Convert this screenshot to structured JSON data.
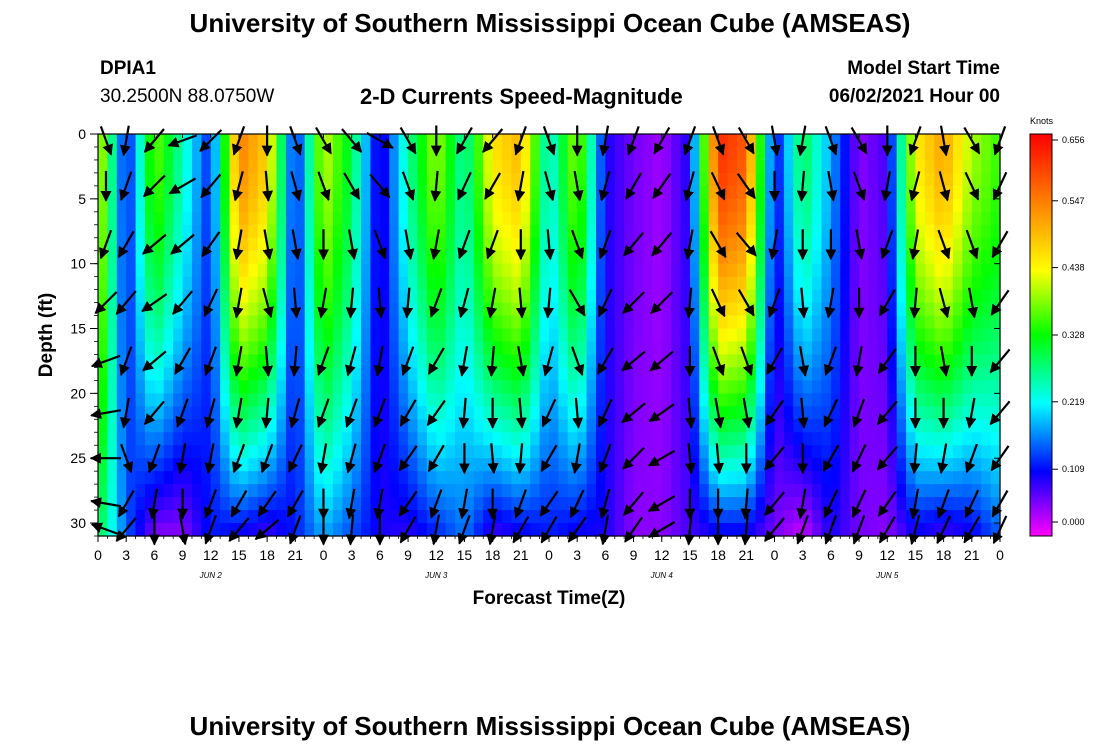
{
  "header": {
    "title_top": "University of Southern Mississippi Ocean Cube (AMSEAS)",
    "title_bottom": "University of Southern Mississippi Ocean Cube (AMSEAS)",
    "station_id": "DPIA1",
    "station_coords": "30.2500N  88.0750W",
    "plot_title": "2-D Currents Speed-Magnitude",
    "model_label": "Model Start Time",
    "model_time": "06/02/2021 Hour 00"
  },
  "chart_data": {
    "type": "heatmap",
    "title": "2-D Currents Speed-Magnitude",
    "xlabel": "Forecast Time(Z)",
    "ylabel": "Depth (ft)",
    "x_hours_range": [
      0,
      96
    ],
    "y_depth_range": [
      0,
      31
    ],
    "x_tick_labels": [
      "0",
      "3",
      "6",
      "9",
      "12",
      "15",
      "18",
      "21",
      "0",
      "3",
      "6",
      "9",
      "12",
      "15",
      "18",
      "21",
      "0",
      "3",
      "6",
      "9",
      "12",
      "15",
      "18",
      "21",
      "0",
      "3",
      "6",
      "9",
      "12",
      "15",
      "18",
      "21",
      "0"
    ],
    "y_tick_labels": [
      "0",
      "5",
      "10",
      "15",
      "20",
      "25",
      "30"
    ],
    "y_tick_values": [
      0,
      5,
      10,
      15,
      20,
      25,
      30
    ],
    "date_labels": [
      {
        "hour": 12,
        "label": "JUN 2"
      },
      {
        "hour": 36,
        "label": "JUN 3"
      },
      {
        "hour": 60,
        "label": "JUN 4"
      },
      {
        "hour": 84,
        "label": "JUN 5"
      }
    ],
    "colorbar": {
      "unit": "Knots",
      "min": 0.0,
      "max": 0.656,
      "tick_labels": [
        "0.656",
        "0.547",
        "0.438",
        "0.328",
        "0.219",
        "0.109",
        "0.000"
      ],
      "tick_values": [
        0.656,
        0.547,
        0.438,
        0.328,
        0.219,
        0.109,
        0.0
      ],
      "colors": [
        "#ff00ff",
        "#0000ff",
        "#00ffff",
        "#00ff00",
        "#ffff00",
        "#ff8000",
        "#ff0000"
      ]
    },
    "surface_speed_by_3h": [
      0.44,
      0.1,
      0.38,
      0.25,
      0.12,
      0.55,
      0.48,
      0.1,
      0.42,
      0.3,
      0.08,
      0.26,
      0.4,
      0.25,
      0.46,
      0.5,
      0.22,
      0.4,
      0.1,
      0.06,
      0.04,
      0.1,
      0.62,
      0.58,
      0.1,
      0.3,
      0.18,
      0.05,
      0.08,
      0.45,
      0.52,
      0.4,
      0.35
    ],
    "near_bottom_speed_by_3h": [
      0.3,
      0.15,
      0.05,
      0.05,
      0.12,
      0.1,
      0.08,
      0.12,
      0.18,
      0.14,
      0.1,
      0.09,
      0.12,
      0.16,
      0.08,
      0.1,
      0.12,
      0.1,
      0.1,
      0.05,
      0.05,
      0.08,
      0.1,
      0.1,
      0.06,
      0.02,
      0.1,
      0.06,
      0.05,
      0.1,
      0.08,
      0.1,
      0.15
    ],
    "arrow_columns_by_3h": [
      [
        160,
        180,
        200,
        225,
        250,
        260,
        270,
        280,
        290
      ],
      [
        190,
        200,
        210,
        220,
        200,
        190,
        160,
        210,
        220
      ],
      [
        220,
        225,
        230,
        235,
        230,
        220,
        200,
        190,
        180
      ],
      [
        250,
        240,
        230,
        220,
        210,
        200,
        190,
        180,
        170
      ],
      [
        225,
        220,
        215,
        205,
        200,
        195,
        190,
        200,
        200
      ],
      [
        200,
        195,
        190,
        190,
        190,
        190,
        200,
        210,
        220
      ],
      [
        180,
        175,
        170,
        165,
        175,
        185,
        200,
        215,
        230
      ],
      [
        160,
        165,
        170,
        175,
        185,
        195,
        205,
        210,
        200
      ],
      [
        150,
        160,
        180,
        190,
        200,
        200,
        190,
        180,
        180
      ],
      [
        140,
        150,
        170,
        185,
        195,
        200,
        195,
        190,
        185
      ],
      [
        120,
        140,
        160,
        175,
        190,
        200,
        200,
        190,
        180
      ],
      [
        150,
        160,
        170,
        185,
        200,
        210,
        215,
        215,
        210
      ],
      [
        180,
        185,
        190,
        200,
        210,
        215,
        210,
        200,
        190
      ],
      [
        210,
        205,
        200,
        195,
        190,
        185,
        180,
        190,
        200
      ],
      [
        220,
        210,
        200,
        190,
        185,
        180,
        175,
        180,
        190
      ],
      [
        200,
        190,
        180,
        175,
        170,
        175,
        185,
        200,
        210
      ],
      [
        160,
        165,
        175,
        185,
        195,
        205,
        210,
        215,
        210
      ],
      [
        180,
        170,
        160,
        150,
        160,
        175,
        190,
        205,
        215
      ],
      [
        190,
        195,
        200,
        205,
        210,
        205,
        200,
        195,
        190
      ],
      [
        200,
        210,
        220,
        225,
        230,
        230,
        225,
        220,
        215
      ],
      [
        210,
        215,
        220,
        225,
        230,
        235,
        240,
        240,
        240
      ],
      [
        200,
        195,
        190,
        185,
        180,
        175,
        175,
        180,
        185
      ],
      [
        160,
        155,
        150,
        155,
        160,
        170,
        175,
        180,
        180
      ],
      [
        150,
        145,
        140,
        150,
        160,
        170,
        180,
        185,
        185
      ],
      [
        170,
        180,
        190,
        200,
        210,
        215,
        220,
        220,
        220
      ],
      [
        190,
        185,
        180,
        175,
        170,
        175,
        180,
        190,
        200
      ],
      [
        160,
        170,
        180,
        190,
        200,
        205,
        210,
        205,
        200
      ],
      [
        150,
        160,
        170,
        180,
        190,
        200,
        205,
        205,
        200
      ],
      [
        180,
        190,
        200,
        210,
        215,
        220,
        220,
        215,
        210
      ],
      [
        200,
        195,
        190,
        185,
        180,
        180,
        185,
        190,
        195
      ],
      [
        170,
        165,
        160,
        165,
        170,
        180,
        190,
        200,
        205
      ],
      [
        150,
        155,
        160,
        170,
        180,
        190,
        200,
        205,
        210
      ],
      [
        200,
        205,
        210,
        215,
        220,
        220,
        215,
        210,
        205
      ]
    ]
  }
}
